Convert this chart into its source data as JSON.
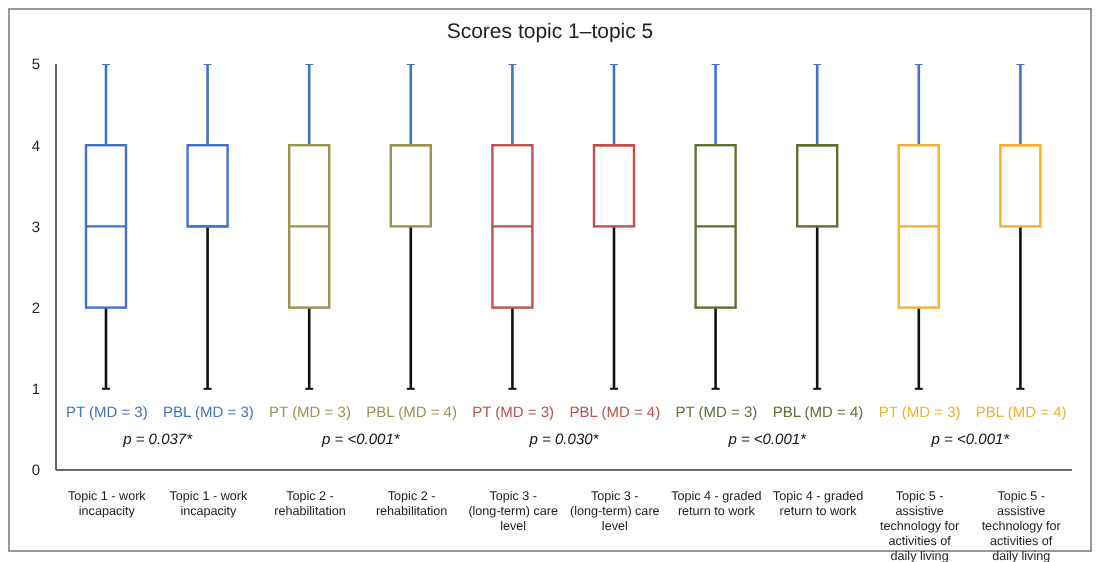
{
  "chart_data": {
    "type": "box",
    "title": "Scores topic 1–topic 5",
    "categories": [
      "Topic 1 - work incapacity",
      "Topic 1 - work incapacity",
      "Topic 2 - rehabilitation",
      "Topic 2 - rehabilitation",
      "Topic 3 - (long-term) care level",
      "Topic 3 - (long-term) care level",
      "Topic 4 - graded return to work",
      "Topic 4 - graded return to work",
      "Topic 5 - assistive technology for activities of daily living",
      "Topic 5 - assistive technology for activities of daily living"
    ],
    "colors": [
      "#4472c4",
      "#4472c4",
      "#9c9350",
      "#9c9350",
      "#c0504d",
      "#c0504d",
      "#5a7030",
      "#5a7030",
      "#f0b030",
      "#f0b030"
    ],
    "boxes": [
      {
        "low": 1,
        "q1": 2,
        "median": 3,
        "q3": 4,
        "high": 5
      },
      {
        "low": 1,
        "q1": 3,
        "median": 3,
        "q3": 4,
        "high": 5
      },
      {
        "low": 1,
        "q1": 2,
        "median": 3,
        "q3": 4,
        "high": 5
      },
      {
        "low": 1,
        "q1": 3,
        "median": 4,
        "q3": 4,
        "high": 5
      },
      {
        "low": 1,
        "q1": 2,
        "median": 3,
        "q3": 4,
        "high": 5
      },
      {
        "low": 1,
        "q1": 3,
        "median": 4,
        "q3": 4,
        "high": 5
      },
      {
        "low": 1,
        "q1": 2,
        "median": 3,
        "q3": 4,
        "high": 5
      },
      {
        "low": 1,
        "q1": 3,
        "median": 4,
        "q3": 4,
        "high": 5
      },
      {
        "low": 1,
        "q1": 2,
        "median": 3,
        "q3": 4,
        "high": 5
      },
      {
        "low": 1,
        "q1": 3,
        "median": 4,
        "q3": 4,
        "high": 5
      }
    ],
    "ylim": [
      0,
      5
    ],
    "yticks": [
      0,
      1,
      2,
      3,
      4,
      5
    ],
    "grid": false,
    "legend": false,
    "annotations": [
      "PT (MD = 3)",
      "PBL (MD = 3)",
      "PT (MD = 3)",
      "PBL (MD = 4)",
      "PT (MD = 3)",
      "PBL (MD = 4)",
      "PT (MD = 3)",
      "PBL (MD = 4)",
      "PT (MD = 3)",
      "PBL (MD = 4)",
      "p = 0.037*",
      "p = <0.001*",
      "p = 0.030*",
      "p = <0.001*",
      "p = <0.001*"
    ]
  }
}
